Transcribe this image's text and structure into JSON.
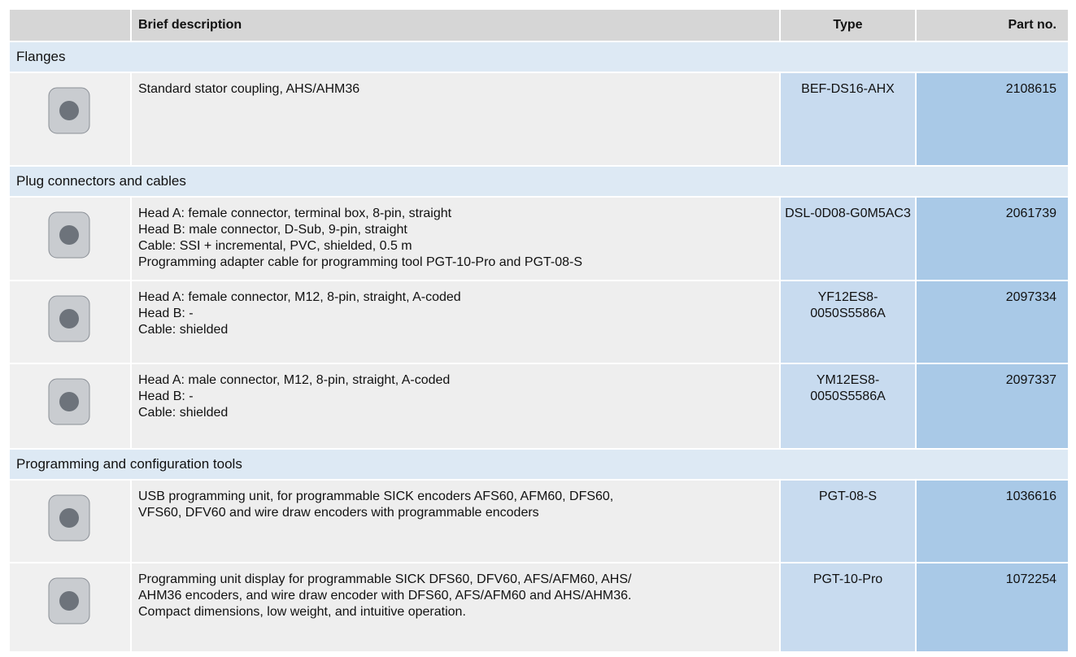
{
  "header": {
    "description": "Brief description",
    "type": "Type",
    "part_no": "Part no."
  },
  "sections": [
    {
      "title": "Flanges",
      "rows": [
        {
          "description": [
            "Standard stator coupling, AHS/AHM36"
          ],
          "type": [
            "BEF-DS16-AHX"
          ],
          "part_no": "2108615"
        }
      ]
    },
    {
      "title": "Plug connectors and cables",
      "rows": [
        {
          "description": [
            "Head A: female connector, terminal box, 8-pin, straight",
            "Head B: male connector, D-Sub, 9-pin, straight",
            "Cable: SSI + incremental, PVC, shielded, 0.5 m",
            "Programming adapter cable for programming tool PGT-10-Pro and PGT-08-S"
          ],
          "type": [
            "DSL-0D08-G0M5AC3"
          ],
          "part_no": "2061739"
        },
        {
          "description": [
            "Head A: female connector, M12, 8-pin, straight, A-coded",
            "Head B: -",
            "Cable: shielded"
          ],
          "type": [
            "YF12ES8-",
            "0050S5586A"
          ],
          "part_no": "2097334"
        },
        {
          "description": [
            "Head A: male connector, M12, 8-pin, straight, A-coded",
            "Head B: -",
            "Cable: shielded"
          ],
          "type": [
            "YM12ES8-",
            "0050S5586A"
          ],
          "part_no": "2097337"
        }
      ]
    },
    {
      "title": "Programming and configuration tools",
      "rows": [
        {
          "description": [
            "USB programming unit, for programmable SICK encoders AFS60, AFM60, DFS60,",
            "VFS60, DFV60 and wire draw encoders with programmable encoders"
          ],
          "type": [
            "PGT-08-S"
          ],
          "part_no": "1036616"
        },
        {
          "description": [
            "Programming unit display for programmable SICK DFS60, DFV60, AFS/AFM60, AHS/",
            "AHM36 encoders, and wire draw encoder with DFS60, AFS/AFM60 and AHS/AHM36.",
            "Compact dimensions, low weight, and intuitive operation."
          ],
          "type": [
            "PGT-10-Pro"
          ],
          "part_no": "1072254"
        }
      ]
    }
  ]
}
